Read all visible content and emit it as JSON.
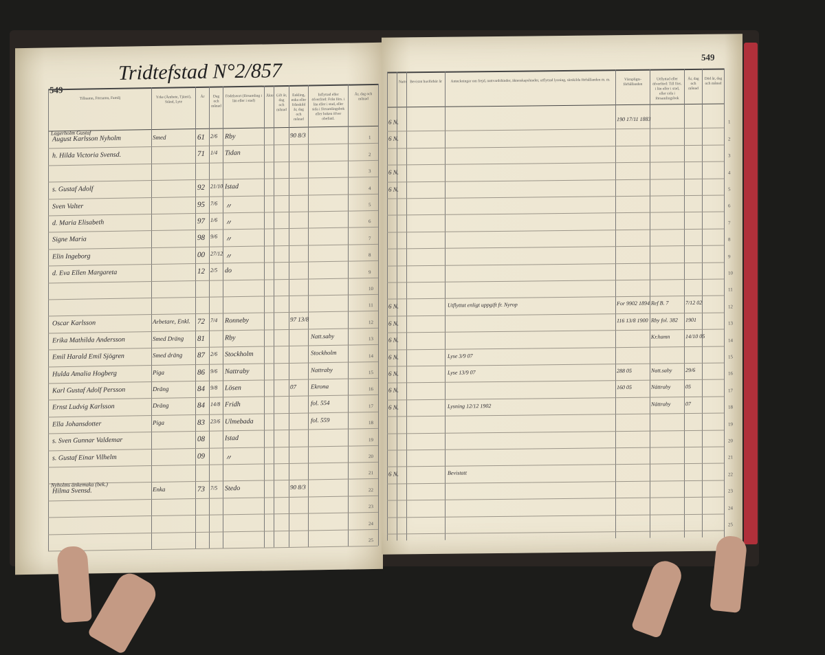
{
  "left_page": {
    "page_number": "549",
    "title": "Tridtefstad N°2/857",
    "headers": [
      "Tillnamn, Förnamn, Familj",
      "Yrke (Ämbete, Tjänst), Stånd, Lyte",
      "År",
      "Dag och månad",
      "Födelseort (församling i län eller i stad)",
      "Äktenskap",
      "Gift år, dag och månad",
      "Enkling, enka eller frånskild år, dag och månad",
      "Inflyttad eller öfverförd: Från förs. i län eller i stad, eller sida i församlingsbok eller boken öfver obefintl.",
      "År, dag och månad"
    ],
    "rows": [
      {
        "n": "1",
        "name": "August Karlsson Nyholm",
        "above": "Lagerholm Gustaf",
        "trade": "Smed",
        "year": "61",
        "date": "2/6",
        "place": "Rby",
        "married": "90 8/3"
      },
      {
        "n": "2",
        "name": "h. Hilda Victoria Svensd.",
        "trade": "",
        "year": "71",
        "date": "1/4",
        "place": "Tidan"
      },
      {
        "n": "4",
        "name": "s. Gustaf Adolf",
        "trade": "",
        "year": "92",
        "date": "21/10",
        "place": "Istad"
      },
      {
        "n": "5",
        "name": "Sven Valter",
        "trade": "",
        "year": "95",
        "date": "7/6",
        "place": "〃"
      },
      {
        "n": "6",
        "name": "d. Maria Elisabeth",
        "trade": "",
        "year": "97",
        "date": "1/6",
        "place": "〃"
      },
      {
        "n": "7",
        "name": "Signe Maria",
        "trade": "",
        "year": "98",
        "date": "9/6",
        "place": "〃"
      },
      {
        "n": "8",
        "name": "Elin Ingeborg",
        "trade": "",
        "year": "00",
        "date": "27/12",
        "place": "〃"
      },
      {
        "n": "9",
        "name": "d. Eva Ellen Margareta",
        "trade": "",
        "year": "12",
        "date": "2/5",
        "place": "do"
      },
      {
        "n": "12",
        "name": "Oscar Karlsson",
        "trade": "Arbetare, Enkl.",
        "year": "72",
        "date": "7/4",
        "place": "Ronneby",
        "married": "97 13/8"
      },
      {
        "n": "13",
        "name": "Erika Mathilda Andersson",
        "trade": "Smed Dräng",
        "year": "81",
        "date": "",
        "place": "Rby",
        "from": "Natt.saby"
      },
      {
        "n": "14",
        "name": "Emil Harald Emil Sjögren",
        "trade": "Smed dräng",
        "year": "87",
        "date": "2/6",
        "place": "Stockholm",
        "from": "Stockholm"
      },
      {
        "n": "15",
        "name": "Hulda Amalia Hogberg",
        "trade": "Piga",
        "year": "86",
        "date": "9/6",
        "place": "Nattraby",
        "from": "Nattraby"
      },
      {
        "n": "16",
        "name": "Karl Gustaf Adolf Persson",
        "trade": "Dräng",
        "year": "84",
        "date": "9/8",
        "place": "Lösen",
        "from": "Ekrona",
        "married": "07"
      },
      {
        "n": "17",
        "name": "Ernst Ludvig Karlsson",
        "trade": "Dräng",
        "year": "84",
        "date": "14/8",
        "place": "Fridh",
        "from": "fol. 554"
      },
      {
        "n": "18",
        "name": "Ella Johansdotter",
        "trade": "Piga",
        "year": "83",
        "date": "23/6",
        "place": "Ulmebada",
        "from": "fol. 559"
      },
      {
        "n": "19",
        "name": "s. Sven Gunnar Valdemar",
        "trade": "",
        "year": "08",
        "date": "",
        "place": "Istad"
      },
      {
        "n": "20",
        "name": "s. Gustaf Einar Vilhelm",
        "trade": "",
        "year": "09",
        "date": "",
        "place": "〃"
      },
      {
        "n": "22",
        "name": "Hilma Svensd.",
        "above": "Nyholms änkemaka (bek.)",
        "trade": "Enka",
        "year": "73",
        "date": "7/5",
        "place": "Stedo",
        "married": "90 8/3"
      }
    ]
  },
  "right_page": {
    "page_number": "549",
    "headers": [
      "Nattvard",
      "Bevistat husförhör år",
      "Anteckningar om frejd, nattvardshinder, äktenskapshinder, utflyttad lysning, särskilda förhållanden m. m.",
      "Värnpligts-förhållanden",
      "Utflyttad eller öfverförd: Till förs. i län eller i stad, eller sida i församlingsbok",
      "År, dag och månad",
      "Död år, dag och månad"
    ],
    "rows": [
      {
        "n": "1",
        "mark": "6 N.",
        "military": "190 17/11 1883"
      },
      {
        "n": "2",
        "mark": "6 N."
      },
      {
        "n": "4",
        "mark": "6 N."
      },
      {
        "n": "5",
        "mark": "6 N."
      },
      {
        "n": "12",
        "mark": "6 N.",
        "note": "Utflyttat enligt uppgift fr. Nyrop",
        "military": "For 9902 1894",
        "to": "Ref B. 7",
        "date": "7/12 02"
      },
      {
        "n": "13",
        "mark": "6 N.",
        "military": "116 13/8 1900",
        "to": "Rby fol. 382",
        "date": "1901"
      },
      {
        "n": "14",
        "mark": "6 N.",
        "to": "Kr.hamn",
        "date": "14/10 05"
      },
      {
        "n": "15",
        "mark": "6 N.",
        "note": "Lyse 3/9 07"
      },
      {
        "n": "16",
        "mark": "6 N.",
        "note": "Lyse 13/9 07",
        "military": "288 05",
        "to": "Natt.saby",
        "date": "29/6"
      },
      {
        "n": "17",
        "mark": "6 N.",
        "military": "160 05",
        "to": "Nättraby",
        "date": "05"
      },
      {
        "n": "18",
        "mark": "6 N.",
        "note": "Lysning 12/12 1902",
        "to": "Nättraby",
        "date": "07"
      },
      {
        "n": "22",
        "mark": "6 N.",
        "note": "Bevistatt"
      }
    ]
  }
}
